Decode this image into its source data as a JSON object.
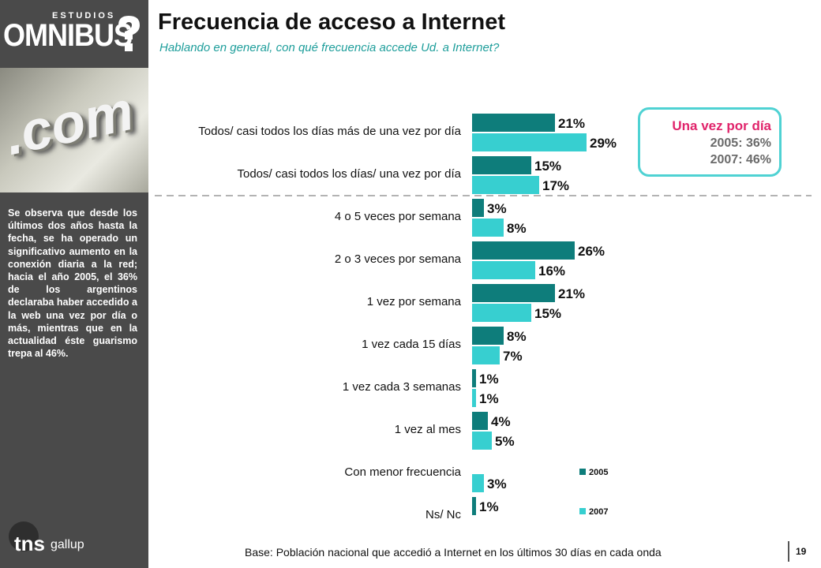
{
  "brand": {
    "top": "ESTUDIOS",
    "main": "OMNIBUS"
  },
  "photo_label": ".com",
  "title": "Frecuencia de acceso a Internet",
  "subtitle": "Hablando en general, con qué frecuencia accede Ud. a Internet?",
  "side_note": "Se observa que desde los últimos dos años hasta la fecha, se ha operado un significativo aumento en la conexión diaria a la red; hacia el año 2005, el 36% de los argentinos declaraba haber accedido a la web una vez por día o más, mientras que en la actualidad éste guarismo trepa al 46%.",
  "callout": {
    "title": "Una vez por día",
    "line1": "2005: 36%",
    "line2": "2007: 46%"
  },
  "footer": "Base: Población nacional que accedió a Internet en los últimos 30 días en cada onda",
  "page_number": "19",
  "logo": {
    "tns": "tns",
    "gallup": "gallup"
  },
  "colors": {
    "series_2005": "#0e7d7b",
    "series_2007": "#37cfd0",
    "accent": "#e0246b",
    "sidebar": "#4a4a4a"
  },
  "chart_data": {
    "type": "bar",
    "orientation": "horizontal",
    "categories": [
      "Todos/ casi todos los días más de una vez por día",
      "Todos/ casi todos los días/ una vez por día",
      "4 o 5 veces por semana",
      "2 o 3 veces por semana",
      "1 vez por semana",
      "1 vez cada 15 días",
      "1 vez cada 3 semanas",
      "1 vez al mes",
      "Con menor frecuencia",
      "Ns/ Nc"
    ],
    "series": [
      {
        "name": "2005",
        "values": [
          21,
          15,
          3,
          26,
          21,
          8,
          1,
          4,
          null,
          1
        ],
        "labels": [
          "21%",
          "15%",
          "3%",
          "26%",
          "21%",
          "8%",
          "1%",
          "4%",
          "",
          "1%"
        ]
      },
      {
        "name": "2007",
        "values": [
          29,
          17,
          8,
          16,
          15,
          7,
          1,
          5,
          3,
          null
        ],
        "labels": [
          "29%",
          "17%",
          "8%",
          "16%",
          "15%",
          "7%",
          "1%",
          "5%",
          "3%",
          ""
        ]
      }
    ],
    "legend": "right, inside plot",
    "grid": false
  }
}
